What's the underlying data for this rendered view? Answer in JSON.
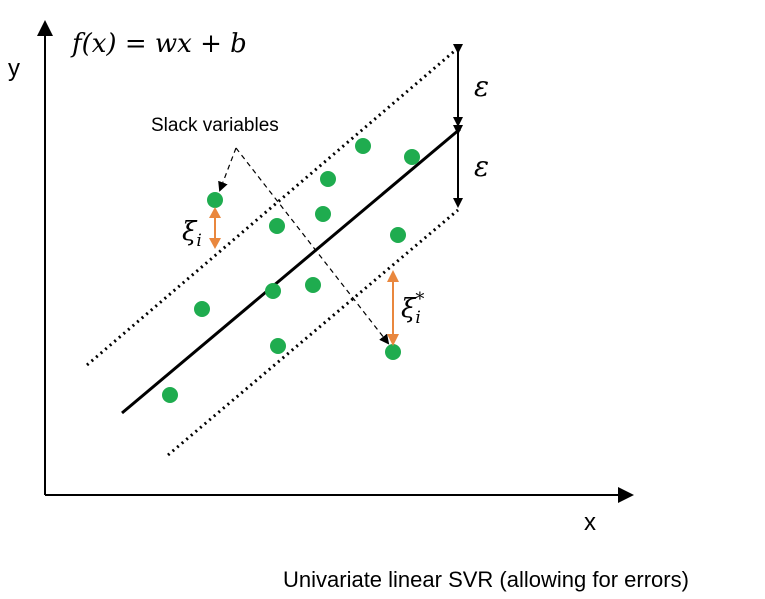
{
  "axes": {
    "x_label": "x",
    "y_label": "y"
  },
  "formula": "f(x) = wx + b",
  "epsilon_label": "ε",
  "slack": {
    "label": "Slack variables",
    "xi_base": "ξ",
    "xi_sub": "i",
    "xi_star_sup": "*"
  },
  "caption": "Univariate linear SVR (allowing for errors)",
  "colors": {
    "points": "#1fac4f",
    "slack_arrow": "#e9873e",
    "line": "#000000"
  },
  "data_points": [
    [
      170,
      395
    ],
    [
      202,
      309
    ],
    [
      215,
      200
    ],
    [
      278,
      346
    ],
    [
      273,
      291
    ],
    [
      277,
      226
    ],
    [
      313,
      285
    ],
    [
      323,
      214
    ],
    [
      328,
      179
    ],
    [
      363,
      146
    ],
    [
      412,
      157
    ],
    [
      398,
      235
    ],
    [
      393,
      352
    ]
  ]
}
